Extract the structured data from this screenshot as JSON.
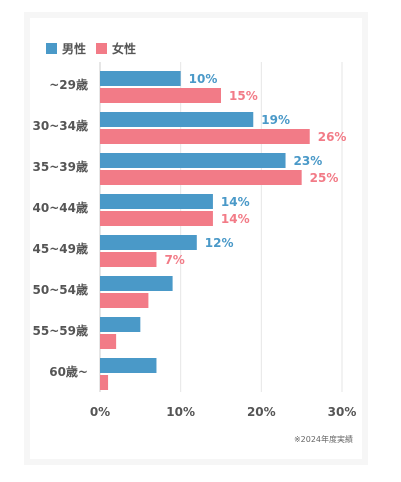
{
  "chart_data": {
    "type": "bar",
    "orientation": "horizontal",
    "categories": [
      "~29歳",
      "30~34歳",
      "35~39歳",
      "40~44歳",
      "45~49歳",
      "50~54歳",
      "55~59歳",
      "60歳~"
    ],
    "series": [
      {
        "name": "男性",
        "color": "#4a99c8",
        "values": [
          10,
          19,
          23,
          14,
          12,
          9,
          5,
          7
        ]
      },
      {
        "name": "女性",
        "color": "#f27b87",
        "values": [
          15,
          26,
          25,
          14,
          7,
          6,
          2,
          1
        ]
      }
    ],
    "value_labels": {
      "男性": [
        "10%",
        "19%",
        "23%",
        "14%",
        "12%",
        null,
        null,
        null
      ],
      "女性": [
        "15%",
        "26%",
        "25%",
        "14%",
        "7%",
        null,
        null,
        null
      ]
    },
    "xticks": [
      "0%",
      "10%",
      "20%",
      "30%"
    ],
    "xlim": [
      0,
      30
    ],
    "grid": true,
    "legend": "top-left"
  },
  "legend": {
    "male": "男性",
    "female": "女性"
  },
  "note": "※2024年度実績"
}
